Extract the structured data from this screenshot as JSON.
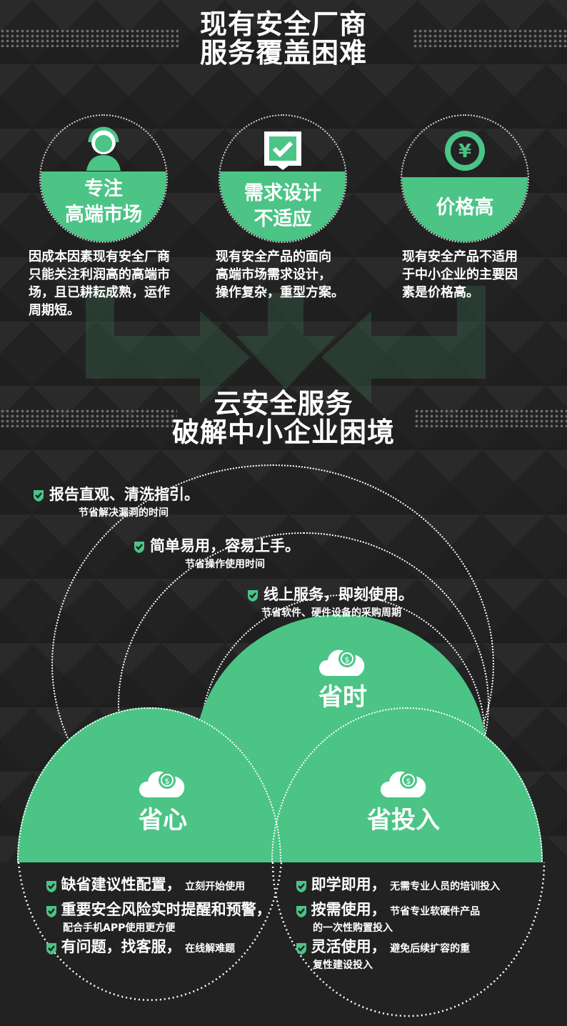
{
  "section1": {
    "title_line1": "现有安全厂商",
    "title_line2": "服务覆盖困难",
    "items": [
      {
        "icon": "person-headset-icon",
        "label_line1": "专注",
        "label_line2": "高端市场",
        "desc": [
          "因成本因素现有安全厂商",
          "只能关注利润高的高端市",
          "场，且已耕耘成熟，运作",
          "周期短。"
        ]
      },
      {
        "icon": "checkbox-icon",
        "label_line1": "需求设计",
        "label_line2": "不适应",
        "desc": [
          "现有安全产品的面向",
          "高端市场需求设计，",
          "操作复杂，重型方案。"
        ]
      },
      {
        "icon": "yen-coin-icon",
        "label_line1": "价格高",
        "label_line2": "",
        "desc": [
          "现有安全产品不适用",
          "于中小企业的主要因",
          "素是价格高。"
        ]
      }
    ]
  },
  "section2": {
    "title_line1": "云安全服务",
    "title_line2": "破解中小企业困境",
    "benefits": [
      {
        "main": "报告直观、清洗指引。",
        "sub": "节省解决漏洞的时间"
      },
      {
        "main": "简单易用，容易上手。",
        "sub": "节省操作使用时间"
      },
      {
        "main": "线上服务，即刻使用。",
        "sub": "节省软件、硬件设备的采购周期"
      }
    ],
    "venn": {
      "top": "省时",
      "left": "省心",
      "right": "省投入"
    },
    "left_features": [
      {
        "main": "缺省建议性配置，",
        "small": "立刻开始使用",
        "sub": ""
      },
      {
        "main": "重要安全风险实时提醒和预警，",
        "small": "",
        "sub": "配合手机APP使用更方便"
      },
      {
        "main": "有问题，找客服，",
        "small": "在线解难题",
        "sub": ""
      }
    ],
    "right_features": [
      {
        "main": "即学即用，",
        "small": "无需专业人员的培训投入",
        "sub": ""
      },
      {
        "main": "按需使用，",
        "small": "节省专业软硬件产品",
        "sub": "的一次性购置投入"
      },
      {
        "main": "灵活使用，",
        "small": "避免后续扩容的重",
        "sub": "复性建设投入"
      }
    ]
  },
  "colors": {
    "accent": "#4bc486",
    "background": "#222222"
  }
}
